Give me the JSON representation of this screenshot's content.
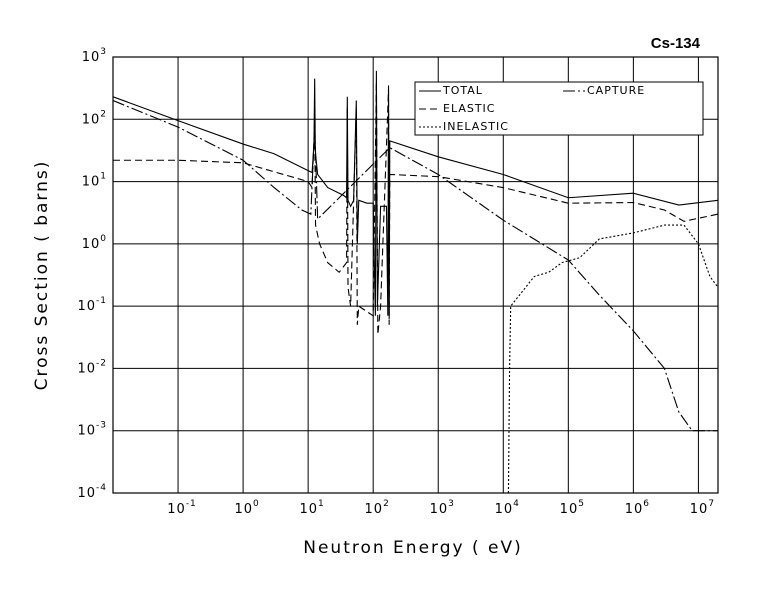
{
  "chart_data": {
    "type": "line",
    "title": "Cs-134",
    "xlabel": "Neutron Energy ( eV)",
    "ylabel": "Cross Section ( barns)",
    "xscale": "log",
    "yscale": "log",
    "grid": true,
    "xlim": [
      0.01,
      20000000
    ],
    "ylim": [
      0.0001,
      1000
    ],
    "xticks": [
      {
        "value": 0.1,
        "label": "10",
        "sup": "-1"
      },
      {
        "value": 1,
        "label": "10",
        "sup": "0"
      },
      {
        "value": 10,
        "label": "10",
        "sup": "1"
      },
      {
        "value": 100,
        "label": "10",
        "sup": "2"
      },
      {
        "value": 1000,
        "label": "10",
        "sup": "3"
      },
      {
        "value": 10000,
        "label": "10",
        "sup": "4"
      },
      {
        "value": 100000,
        "label": "10",
        "sup": "5"
      },
      {
        "value": 1000000,
        "label": "10",
        "sup": "6"
      },
      {
        "value": 10000000,
        "label": "10",
        "sup": "7"
      }
    ],
    "yticks": [
      {
        "value": 0.0001,
        "label": "10",
        "sup": "-4"
      },
      {
        "value": 0.001,
        "label": "10",
        "sup": "-3"
      },
      {
        "value": 0.01,
        "label": "10",
        "sup": "-2"
      },
      {
        "value": 0.1,
        "label": "10",
        "sup": "-1"
      },
      {
        "value": 1,
        "label": "10",
        "sup": "0"
      },
      {
        "value": 10,
        "label": "10",
        "sup": "1"
      },
      {
        "value": 100,
        "label": "10",
        "sup": "2"
      },
      {
        "value": 1000,
        "label": "10",
        "sup": "3"
      }
    ],
    "series": [
      {
        "name": "TOTAL",
        "color": "#000000",
        "linestyle": "solid",
        "x": [
          0.01,
          0.1,
          1,
          3,
          10,
          11.5,
          12.3,
          12.6,
          12.9,
          14,
          20,
          35,
          39,
          40,
          41,
          45,
          50,
          55,
          57,
          60,
          80,
          100,
          108,
          112,
          116,
          130,
          160,
          168,
          172,
          176,
          180,
          1000,
          10000,
          100000,
          1000000,
          5000000,
          20000000
        ],
        "values": [
          230,
          95,
          40,
          28,
          15,
          14,
          40,
          450,
          30,
          13,
          8,
          6,
          5.5,
          230,
          5,
          4,
          5,
          200,
          1,
          5,
          4.5,
          4.5,
          0.07,
          600,
          0.1,
          4,
          4,
          0.07,
          350,
          0.07,
          45,
          25,
          13,
          5.5,
          6.5,
          4.2,
          5
        ]
      },
      {
        "name": "ELASTIC",
        "color": "#000000",
        "linestyle": "dashed",
        "x": [
          0.01,
          0.1,
          1,
          10,
          11.5,
          12.6,
          13,
          15,
          20,
          30,
          39,
          40,
          41,
          45,
          55,
          57,
          60,
          100,
          112,
          118,
          130,
          172,
          176,
          180,
          1000,
          10000,
          100000,
          1000000,
          3000000,
          6000000,
          20000000
        ],
        "values": [
          22,
          22,
          20,
          10,
          8,
          100,
          2,
          1,
          0.5,
          0.35,
          0.5,
          150,
          0.2,
          0.1,
          150,
          0.05,
          0.1,
          0.07,
          400,
          0.035,
          0.1,
          300,
          0.05,
          13,
          12,
          8,
          4.5,
          4.6,
          3.5,
          2.3,
          3
        ]
      },
      {
        "name": "INELASTIC",
        "color": "#000000",
        "linestyle": "dotted",
        "x": [
          12000,
          12500,
          13000,
          30000,
          50000,
          80000,
          150000,
          200000,
          300000,
          1000000,
          3000000,
          6000000,
          10000000,
          15000000,
          20000000
        ],
        "values": [
          0.0001,
          0.01,
          0.1,
          0.3,
          0.35,
          0.5,
          0.6,
          0.8,
          1.2,
          1.5,
          2,
          2,
          1,
          0.3,
          0.2
        ]
      },
      {
        "name": "CAPTURE",
        "color": "#000000",
        "linestyle": "dashdot",
        "x": [
          0.01,
          0.1,
          1,
          3,
          8,
          11,
          12.6,
          14,
          180,
          1000,
          10000,
          100000,
          300000,
          1000000,
          3000000,
          5000000,
          8000000,
          20000000
        ],
        "values": [
          200,
          75,
          22,
          8,
          3.5,
          3,
          80,
          2.5,
          35,
          13,
          2.4,
          0.55,
          0.15,
          0.04,
          0.01,
          0.002,
          0.001,
          0.001
        ]
      }
    ]
  }
}
